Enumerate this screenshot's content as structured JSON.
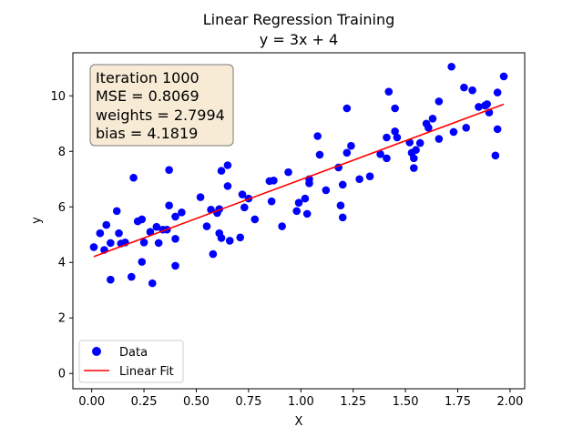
{
  "chart_data": {
    "type": "scatter",
    "title_line1": "Linear Regression Training",
    "title_line2": "y = 3x + 4",
    "xlabel": "X",
    "ylabel": "y",
    "xlim": [
      -0.09,
      2.07
    ],
    "ylim": [
      -0.55,
      11.55
    ],
    "xticks": [
      "0.00",
      "0.25",
      "0.50",
      "0.75",
      "1.00",
      "1.25",
      "1.50",
      "1.75",
      "2.00"
    ],
    "xtick_values": [
      0,
      0.25,
      0.5,
      0.75,
      1.0,
      1.25,
      1.5,
      1.75,
      2.0
    ],
    "yticks": [
      "0",
      "2",
      "4",
      "6",
      "8",
      "10"
    ],
    "ytick_values": [
      0,
      2,
      4,
      6,
      8,
      10
    ],
    "grid": false,
    "legend_position": "lower-left",
    "colors": {
      "points": "#0000ff",
      "fit": "#ff0000",
      "box_fill": "#f8ebd6",
      "box_edge": "#7a7a7a"
    },
    "info_box": {
      "iteration": "Iteration 1000",
      "mse": "MSE = 0.8069",
      "weights": "weights = 2.7994",
      "bias": "bias = 4.1819"
    },
    "series": [
      {
        "name": "Data",
        "kind": "scatter",
        "points": [
          [
            0.01,
            4.55
          ],
          [
            0.04,
            5.05
          ],
          [
            0.06,
            4.45
          ],
          [
            0.07,
            5.35
          ],
          [
            0.09,
            3.38
          ],
          [
            0.09,
            4.7
          ],
          [
            0.12,
            5.85
          ],
          [
            0.13,
            5.05
          ],
          [
            0.14,
            4.68
          ],
          [
            0.16,
            4.72
          ],
          [
            0.19,
            3.48
          ],
          [
            0.2,
            7.05
          ],
          [
            0.22,
            5.48
          ],
          [
            0.24,
            4.02
          ],
          [
            0.24,
            5.55
          ],
          [
            0.25,
            4.72
          ],
          [
            0.28,
            5.1
          ],
          [
            0.29,
            3.25
          ],
          [
            0.31,
            5.28
          ],
          [
            0.32,
            4.7
          ],
          [
            0.34,
            5.18
          ],
          [
            0.36,
            5.18
          ],
          [
            0.37,
            6.05
          ],
          [
            0.37,
            7.33
          ],
          [
            0.4,
            3.88
          ],
          [
            0.4,
            5.65
          ],
          [
            0.4,
            4.85
          ],
          [
            0.43,
            5.8
          ],
          [
            0.52,
            6.35
          ],
          [
            0.55,
            5.3
          ],
          [
            0.57,
            5.9
          ],
          [
            0.58,
            4.3
          ],
          [
            0.6,
            5.78
          ],
          [
            0.61,
            5.05
          ],
          [
            0.61,
            5.92
          ],
          [
            0.62,
            4.88
          ],
          [
            0.62,
            7.3
          ],
          [
            0.65,
            6.75
          ],
          [
            0.65,
            7.5
          ],
          [
            0.66,
            4.78
          ],
          [
            0.71,
            4.9
          ],
          [
            0.72,
            6.45
          ],
          [
            0.73,
            5.98
          ],
          [
            0.75,
            6.3
          ],
          [
            0.78,
            5.55
          ],
          [
            0.85,
            6.93
          ],
          [
            0.86,
            6.2
          ],
          [
            0.87,
            6.95
          ],
          [
            0.91,
            5.3
          ],
          [
            0.94,
            7.25
          ],
          [
            0.98,
            5.85
          ],
          [
            0.99,
            6.15
          ],
          [
            1.02,
            6.3
          ],
          [
            1.03,
            5.75
          ],
          [
            1.04,
            7.0
          ],
          [
            1.04,
            6.85
          ],
          [
            1.08,
            8.55
          ],
          [
            1.09,
            7.88
          ],
          [
            1.12,
            6.6
          ],
          [
            1.18,
            7.42
          ],
          [
            1.19,
            6.05
          ],
          [
            1.2,
            5.62
          ],
          [
            1.2,
            6.8
          ],
          [
            1.22,
            9.55
          ],
          [
            1.22,
            7.95
          ],
          [
            1.24,
            8.2
          ],
          [
            1.28,
            7.0
          ],
          [
            1.33,
            7.1
          ],
          [
            1.38,
            7.9
          ],
          [
            1.41,
            7.75
          ],
          [
            1.41,
            8.5
          ],
          [
            1.42,
            10.15
          ],
          [
            1.45,
            9.55
          ],
          [
            1.45,
            8.72
          ],
          [
            1.46,
            8.5
          ],
          [
            1.52,
            8.32
          ],
          [
            1.53,
            7.95
          ],
          [
            1.54,
            7.75
          ],
          [
            1.54,
            7.4
          ],
          [
            1.55,
            8.05
          ],
          [
            1.57,
            8.3
          ],
          [
            1.6,
            9.0
          ],
          [
            1.61,
            8.85
          ],
          [
            1.63,
            9.18
          ],
          [
            1.66,
            9.8
          ],
          [
            1.66,
            8.45
          ],
          [
            1.72,
            11.05
          ],
          [
            1.73,
            8.7
          ],
          [
            1.78,
            10.3
          ],
          [
            1.79,
            8.85
          ],
          [
            1.82,
            10.2
          ],
          [
            1.85,
            9.6
          ],
          [
            1.88,
            9.65
          ],
          [
            1.89,
            9.7
          ],
          [
            1.9,
            9.4
          ],
          [
            1.93,
            7.85
          ],
          [
            1.94,
            8.8
          ],
          [
            1.94,
            10.12
          ],
          [
            1.97,
            10.7
          ]
        ]
      },
      {
        "name": "Linear Fit",
        "kind": "line",
        "weight": 2.7994,
        "bias": 4.1819,
        "x_range": [
          0.01,
          1.97
        ]
      }
    ]
  }
}
